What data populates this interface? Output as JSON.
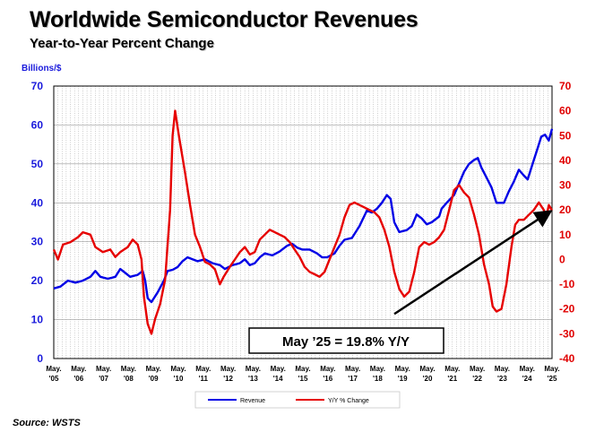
{
  "header": {
    "title": "Worldwide Semiconductor Revenues",
    "subtitle": "Year-to-Year Percent Change",
    "unit_label": "Billions/$"
  },
  "footer": {
    "source": "Source: WSTS"
  },
  "colors": {
    "revenue": "#0000e6",
    "yoy": "#e60000",
    "grid": "#9a9a9a",
    "axis_left": "#1a1adc",
    "axis_right": "#e00000"
  },
  "chart_data": {
    "type": "line",
    "title": "Worldwide Semiconductor Revenues",
    "subtitle": "Year-to-Year Percent Change",
    "ylabel": "Billions/$",
    "ylim": [
      0,
      70
    ],
    "y2lim": [
      -40,
      70
    ],
    "yticks": [
      0,
      10,
      20,
      30,
      40,
      50,
      60,
      70
    ],
    "y2ticks": [
      -40,
      -30,
      -20,
      -10,
      0,
      10,
      20,
      30,
      40,
      50,
      60,
      70
    ],
    "x_start": 2005.33,
    "x_end": 2025.33,
    "xtick_labels": [
      {
        "month": "May.",
        "year": "'05"
      },
      {
        "month": "May.",
        "year": "'06"
      },
      {
        "month": "May.",
        "year": "'07"
      },
      {
        "month": "May.",
        "year": "'08"
      },
      {
        "month": "May.",
        "year": "'09"
      },
      {
        "month": "May.",
        "year": "'10"
      },
      {
        "month": "May.",
        "year": "'11"
      },
      {
        "month": "May.",
        "year": "'12"
      },
      {
        "month": "May.",
        "year": "'13"
      },
      {
        "month": "May.",
        "year": "'14"
      },
      {
        "month": "May.",
        "year": "'15"
      },
      {
        "month": "May.",
        "year": "'16"
      },
      {
        "month": "May.",
        "year": "'17"
      },
      {
        "month": "May.",
        "year": "'18"
      },
      {
        "month": "May.",
        "year": "'19"
      },
      {
        "month": "May.",
        "year": "'20"
      },
      {
        "month": "May.",
        "year": "'21"
      },
      {
        "month": "May.",
        "year": "'22"
      },
      {
        "month": "May.",
        "year": "'23"
      },
      {
        "month": "May.",
        "year": "'24"
      },
      {
        "month": "May.",
        "year": "'25"
      }
    ],
    "series": [
      {
        "name": "Revenue",
        "axis": "left",
        "points": [
          [
            2005.33,
            18
          ],
          [
            2005.6,
            18.5
          ],
          [
            2005.9,
            20
          ],
          [
            2006.2,
            19.5
          ],
          [
            2006.5,
            20
          ],
          [
            2006.8,
            21
          ],
          [
            2007.0,
            22.5
          ],
          [
            2007.2,
            21
          ],
          [
            2007.5,
            20.5
          ],
          [
            2007.8,
            21
          ],
          [
            2008.0,
            23
          ],
          [
            2008.2,
            22
          ],
          [
            2008.4,
            21
          ],
          [
            2008.7,
            21.5
          ],
          [
            2008.9,
            22.5
          ],
          [
            2009.0,
            20
          ],
          [
            2009.1,
            15.5
          ],
          [
            2009.25,
            14.5
          ],
          [
            2009.5,
            17
          ],
          [
            2009.75,
            20
          ],
          [
            2009.9,
            22.5
          ],
          [
            2010.1,
            22.8
          ],
          [
            2010.3,
            23.5
          ],
          [
            2010.5,
            25
          ],
          [
            2010.7,
            26
          ],
          [
            2010.9,
            25.5
          ],
          [
            2011.1,
            25
          ],
          [
            2011.4,
            25.5
          ],
          [
            2011.7,
            24.5
          ],
          [
            2012.0,
            24
          ],
          [
            2012.2,
            23
          ],
          [
            2012.5,
            24
          ],
          [
            2012.8,
            24.5
          ],
          [
            2013.0,
            25.5
          ],
          [
            2013.2,
            24
          ],
          [
            2013.4,
            24.5
          ],
          [
            2013.6,
            26
          ],
          [
            2013.8,
            27
          ],
          [
            2014.1,
            26.5
          ],
          [
            2014.4,
            27.5
          ],
          [
            2014.7,
            29
          ],
          [
            2014.9,
            29.5
          ],
          [
            2015.1,
            28.5
          ],
          [
            2015.3,
            28
          ],
          [
            2015.6,
            28
          ],
          [
            2015.9,
            27
          ],
          [
            2016.1,
            26
          ],
          [
            2016.3,
            26
          ],
          [
            2016.6,
            27
          ],
          [
            2016.8,
            29
          ],
          [
            2017.0,
            30.5
          ],
          [
            2017.3,
            31
          ],
          [
            2017.6,
            34
          ],
          [
            2017.9,
            38
          ],
          [
            2018.1,
            37.5
          ],
          [
            2018.3,
            38.5
          ],
          [
            2018.5,
            40
          ],
          [
            2018.7,
            42
          ],
          [
            2018.85,
            41
          ],
          [
            2019.0,
            35
          ],
          [
            2019.2,
            32.5
          ],
          [
            2019.5,
            33
          ],
          [
            2019.7,
            34
          ],
          [
            2019.9,
            37
          ],
          [
            2020.1,
            36
          ],
          [
            2020.3,
            34.5
          ],
          [
            2020.5,
            35
          ],
          [
            2020.8,
            36.5
          ],
          [
            2020.9,
            38.5
          ],
          [
            2021.1,
            40
          ],
          [
            2021.4,
            42
          ],
          [
            2021.6,
            45
          ],
          [
            2021.8,
            48
          ],
          [
            2022.0,
            50
          ],
          [
            2022.2,
            51
          ],
          [
            2022.35,
            51.5
          ],
          [
            2022.5,
            49
          ],
          [
            2022.7,
            46.5
          ],
          [
            2022.9,
            44
          ],
          [
            2023.1,
            40
          ],
          [
            2023.4,
            40
          ],
          [
            2023.6,
            43
          ],
          [
            2023.8,
            45.5
          ],
          [
            2024.0,
            48.5
          ],
          [
            2024.2,
            47
          ],
          [
            2024.35,
            46
          ],
          [
            2024.55,
            50
          ],
          [
            2024.75,
            54
          ],
          [
            2024.9,
            57
          ],
          [
            2025.05,
            57.5
          ],
          [
            2025.2,
            56
          ],
          [
            2025.33,
            59
          ]
        ]
      },
      {
        "name": "Y/Y % Change",
        "axis": "right",
        "points": [
          [
            2005.33,
            4
          ],
          [
            2005.5,
            0
          ],
          [
            2005.7,
            6
          ],
          [
            2006.0,
            7
          ],
          [
            2006.3,
            9
          ],
          [
            2006.5,
            11
          ],
          [
            2006.8,
            10
          ],
          [
            2007.0,
            5
          ],
          [
            2007.3,
            3
          ],
          [
            2007.6,
            4
          ],
          [
            2007.8,
            1
          ],
          [
            2008.0,
            3
          ],
          [
            2008.3,
            5
          ],
          [
            2008.5,
            8
          ],
          [
            2008.7,
            6
          ],
          [
            2008.85,
            0
          ],
          [
            2008.95,
            -15
          ],
          [
            2009.1,
            -26
          ],
          [
            2009.25,
            -30
          ],
          [
            2009.4,
            -24
          ],
          [
            2009.6,
            -18
          ],
          [
            2009.8,
            -8
          ],
          [
            2010.0,
            20
          ],
          [
            2010.1,
            50
          ],
          [
            2010.2,
            60
          ],
          [
            2010.35,
            50
          ],
          [
            2010.6,
            35
          ],
          [
            2010.8,
            22
          ],
          [
            2011.0,
            10
          ],
          [
            2011.2,
            5
          ],
          [
            2011.4,
            -1
          ],
          [
            2011.6,
            -2
          ],
          [
            2011.8,
            -4
          ],
          [
            2012.0,
            -10
          ],
          [
            2012.15,
            -7
          ],
          [
            2012.4,
            -3
          ],
          [
            2012.6,
            0
          ],
          [
            2012.8,
            3
          ],
          [
            2013.0,
            5
          ],
          [
            2013.2,
            2
          ],
          [
            2013.4,
            3
          ],
          [
            2013.6,
            8
          ],
          [
            2013.8,
            10
          ],
          [
            2014.0,
            12
          ],
          [
            2014.2,
            11
          ],
          [
            2014.4,
            10
          ],
          [
            2014.6,
            9
          ],
          [
            2014.8,
            7
          ],
          [
            2015.0,
            4
          ],
          [
            2015.2,
            1
          ],
          [
            2015.4,
            -3
          ],
          [
            2015.6,
            -5
          ],
          [
            2015.8,
            -6
          ],
          [
            2016.0,
            -7
          ],
          [
            2016.2,
            -5
          ],
          [
            2016.4,
            0
          ],
          [
            2016.6,
            5
          ],
          [
            2016.8,
            10
          ],
          [
            2017.0,
            17
          ],
          [
            2017.2,
            22
          ],
          [
            2017.4,
            23
          ],
          [
            2017.6,
            22
          ],
          [
            2017.8,
            21
          ],
          [
            2018.0,
            20
          ],
          [
            2018.2,
            19
          ],
          [
            2018.4,
            17
          ],
          [
            2018.6,
            12
          ],
          [
            2018.8,
            5
          ],
          [
            2019.0,
            -5
          ],
          [
            2019.2,
            -12
          ],
          [
            2019.4,
            -15
          ],
          [
            2019.6,
            -13
          ],
          [
            2019.8,
            -5
          ],
          [
            2020.0,
            5
          ],
          [
            2020.2,
            7
          ],
          [
            2020.4,
            6
          ],
          [
            2020.6,
            7
          ],
          [
            2020.8,
            9
          ],
          [
            2021.0,
            12
          ],
          [
            2021.2,
            20
          ],
          [
            2021.4,
            28
          ],
          [
            2021.6,
            30
          ],
          [
            2021.8,
            27
          ],
          [
            2022.0,
            25
          ],
          [
            2022.2,
            18
          ],
          [
            2022.4,
            10
          ],
          [
            2022.6,
            -2
          ],
          [
            2022.8,
            -10
          ],
          [
            2022.95,
            -19
          ],
          [
            2023.1,
            -21
          ],
          [
            2023.3,
            -20
          ],
          [
            2023.5,
            -10
          ],
          [
            2023.7,
            5
          ],
          [
            2023.85,
            14
          ],
          [
            2024.0,
            16
          ],
          [
            2024.2,
            16
          ],
          [
            2024.4,
            18
          ],
          [
            2024.6,
            20
          ],
          [
            2024.8,
            23
          ],
          [
            2025.0,
            20
          ],
          [
            2025.1,
            17
          ],
          [
            2025.2,
            22
          ],
          [
            2025.33,
            19.8
          ]
        ]
      }
    ],
    "annotation": {
      "text": "May ’25 = 19.8% Y/Y",
      "arrow_from": [
        2019.0,
        -22
      ],
      "arrow_to": [
        2025.2,
        19
      ],
      "axis": "right"
    },
    "legend": {
      "position": "bottom-center",
      "entries": [
        "Revenue",
        "Y/Y % Change"
      ]
    }
  }
}
